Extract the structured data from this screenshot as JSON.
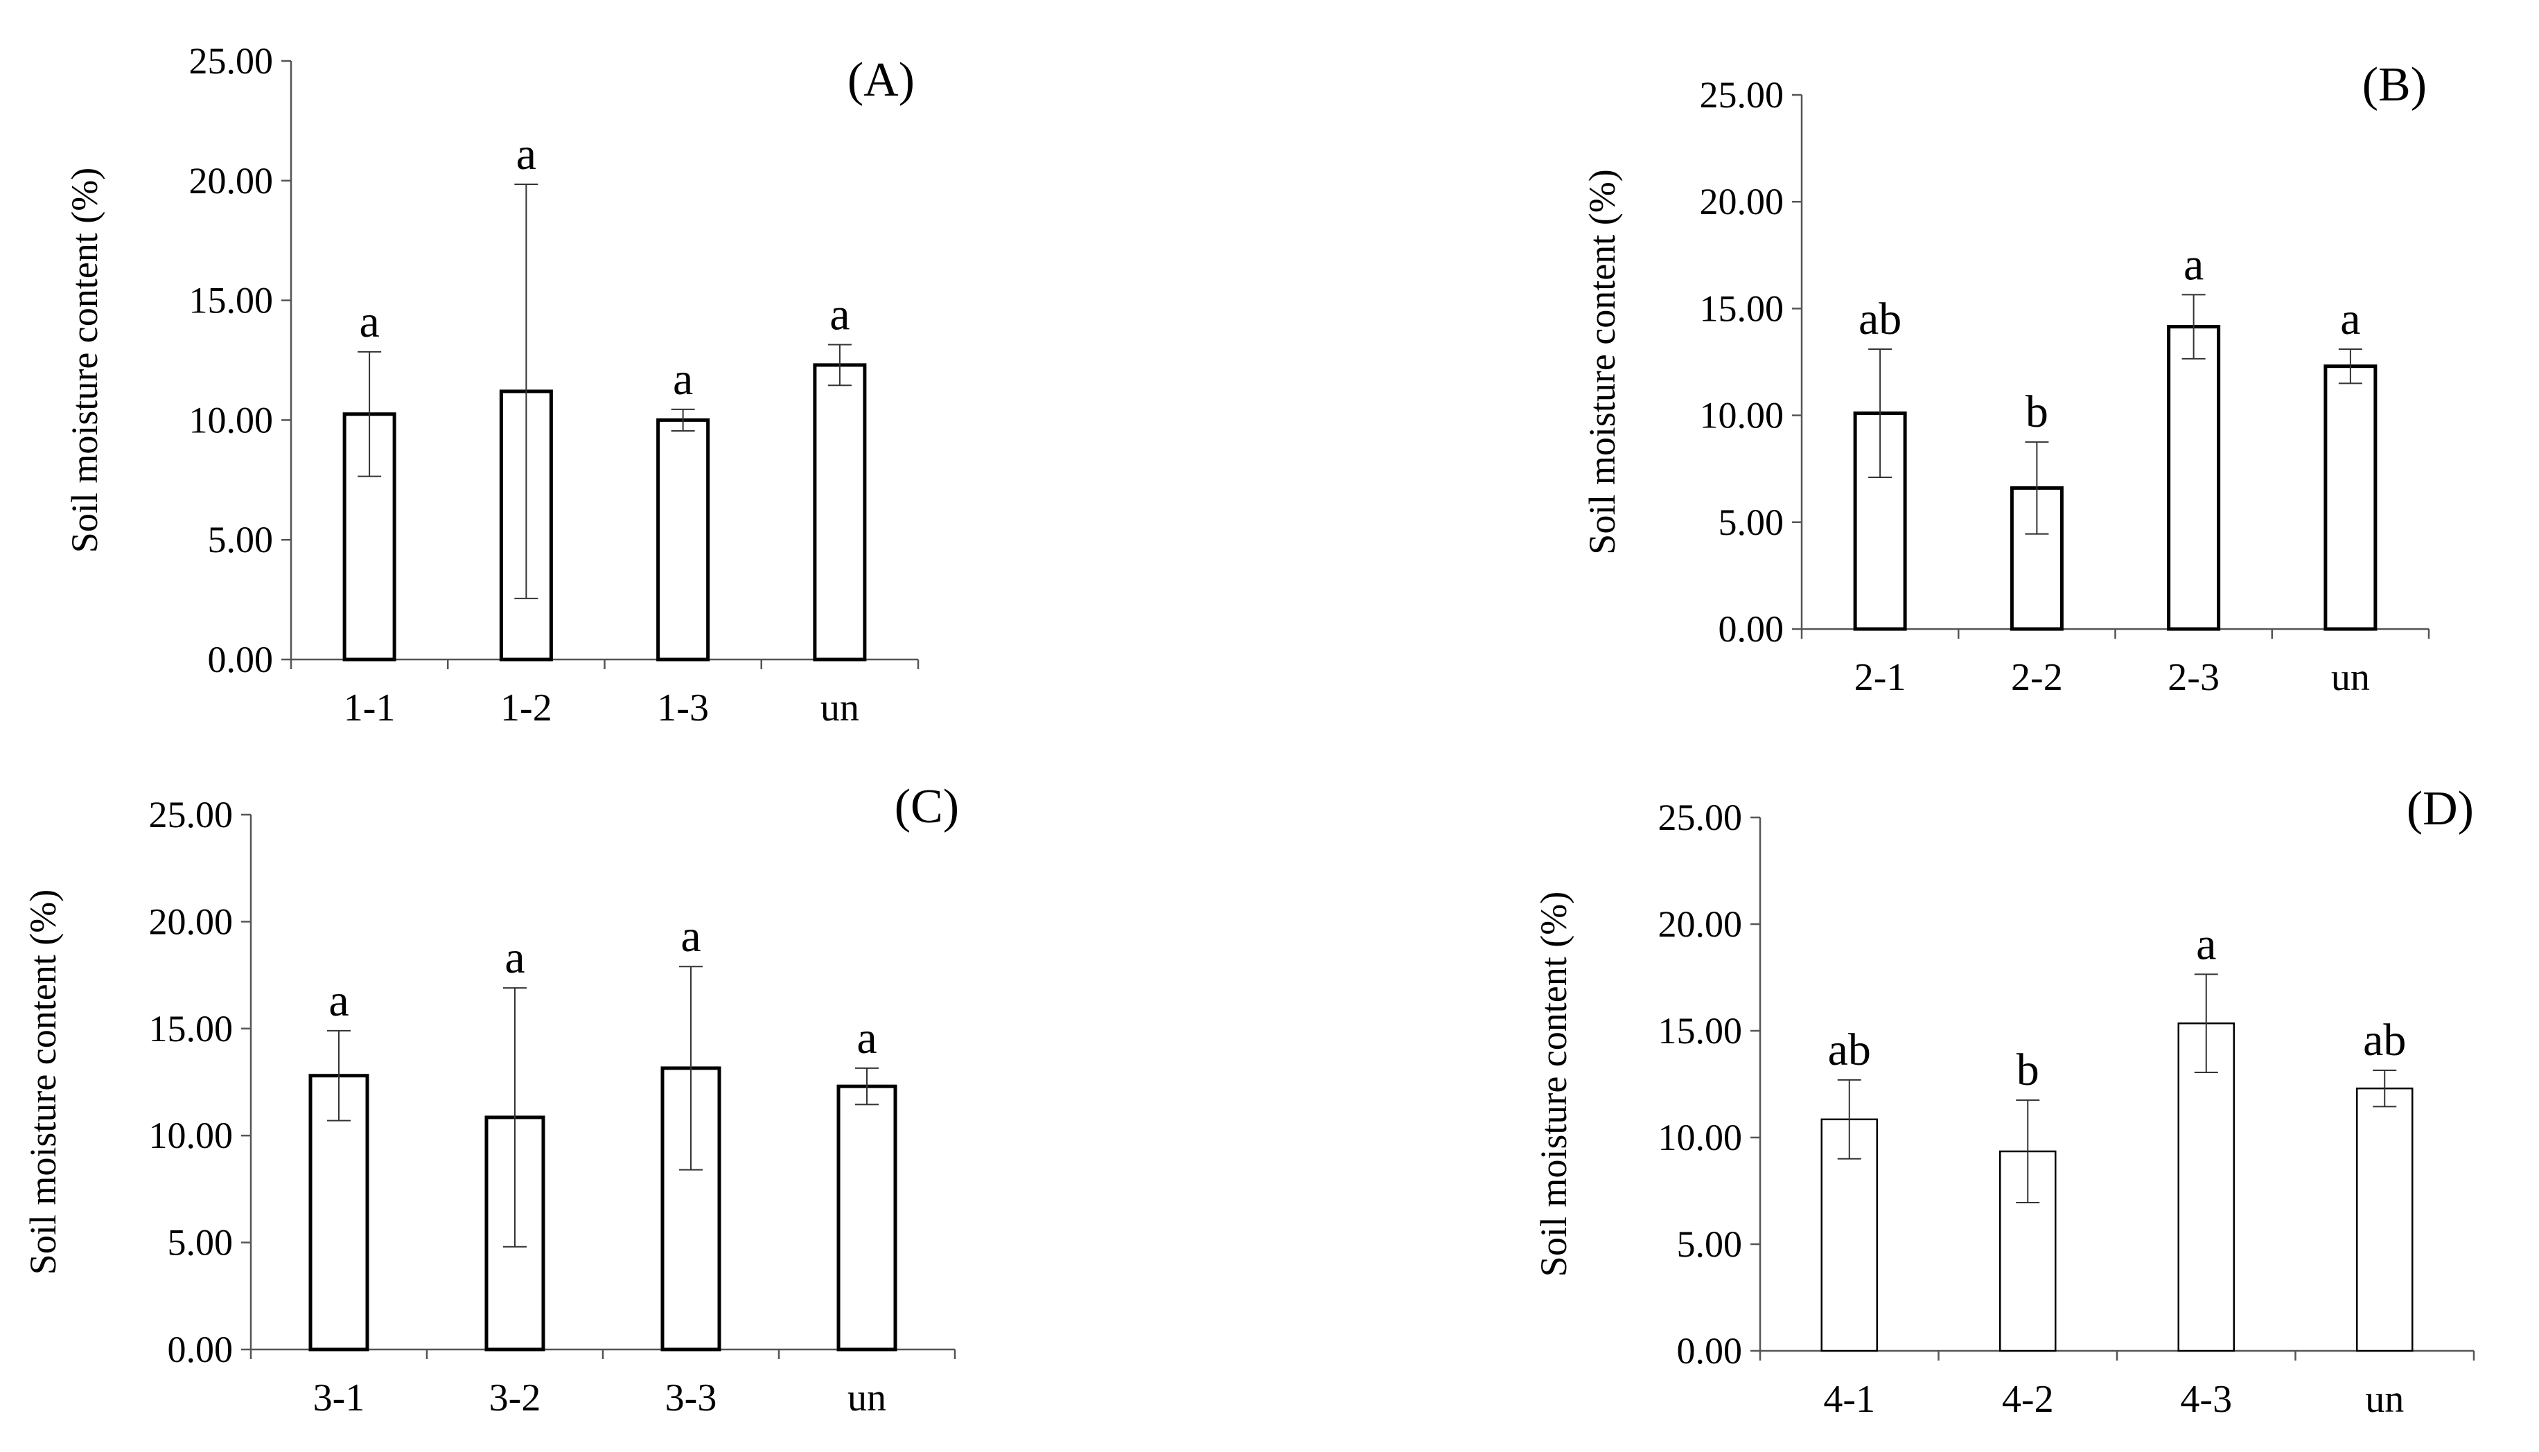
{
  "figure": {
    "ylabel": "Soil moisture content (%)",
    "y_ticks": [
      "0.00",
      "5.00",
      "10.00",
      "15.00",
      "20.00",
      "25.00"
    ]
  },
  "chart_data": [
    {
      "type": "bar",
      "title": "(A)",
      "xlabel": "",
      "ylabel": "Soil moisture content (%)",
      "ylim": [
        0,
        25
      ],
      "categories": [
        "1-1",
        "1-2",
        "1-3",
        "un"
      ],
      "values": [
        10.25,
        11.2,
        10.0,
        12.3
      ],
      "errors": [
        2.6,
        8.65,
        0.45,
        0.85
      ],
      "significance": [
        "a",
        "a",
        "a",
        "a"
      ],
      "grid": false
    },
    {
      "type": "bar",
      "title": "(B)",
      "xlabel": "",
      "ylabel": "Soil moisture content (%)",
      "ylim": [
        0,
        25
      ],
      "categories": [
        "2-1",
        "2-2",
        "2-3",
        "un"
      ],
      "values": [
        10.1,
        6.6,
        14.15,
        12.3
      ],
      "errors": [
        3.0,
        2.15,
        1.5,
        0.8
      ],
      "significance": [
        "ab",
        "b",
        "a",
        "a"
      ],
      "grid": false
    },
    {
      "type": "bar",
      "title": "(C)",
      "xlabel": "",
      "ylabel": "Soil moisture content (%)",
      "ylim": [
        0,
        25
      ],
      "categories": [
        "3-1",
        "3-2",
        "3-3",
        "un"
      ],
      "values": [
        12.8,
        10.85,
        13.15,
        12.3
      ],
      "errors": [
        2.1,
        6.05,
        4.75,
        0.85
      ],
      "significance": [
        "a",
        "a",
        "a",
        "a"
      ],
      "grid": false
    },
    {
      "type": "bar",
      "title": "(D)",
      "xlabel": "",
      "ylabel": "Soil moisture content (%)",
      "ylim": [
        0,
        25
      ],
      "categories": [
        "4-1",
        "4-2",
        "4-3",
        "un"
      ],
      "values": [
        10.85,
        9.35,
        15.35,
        12.3
      ],
      "errors": [
        1.85,
        2.4,
        2.3,
        0.85
      ],
      "significance": [
        "ab",
        "b",
        "a",
        "ab"
      ],
      "grid": false
    }
  ]
}
